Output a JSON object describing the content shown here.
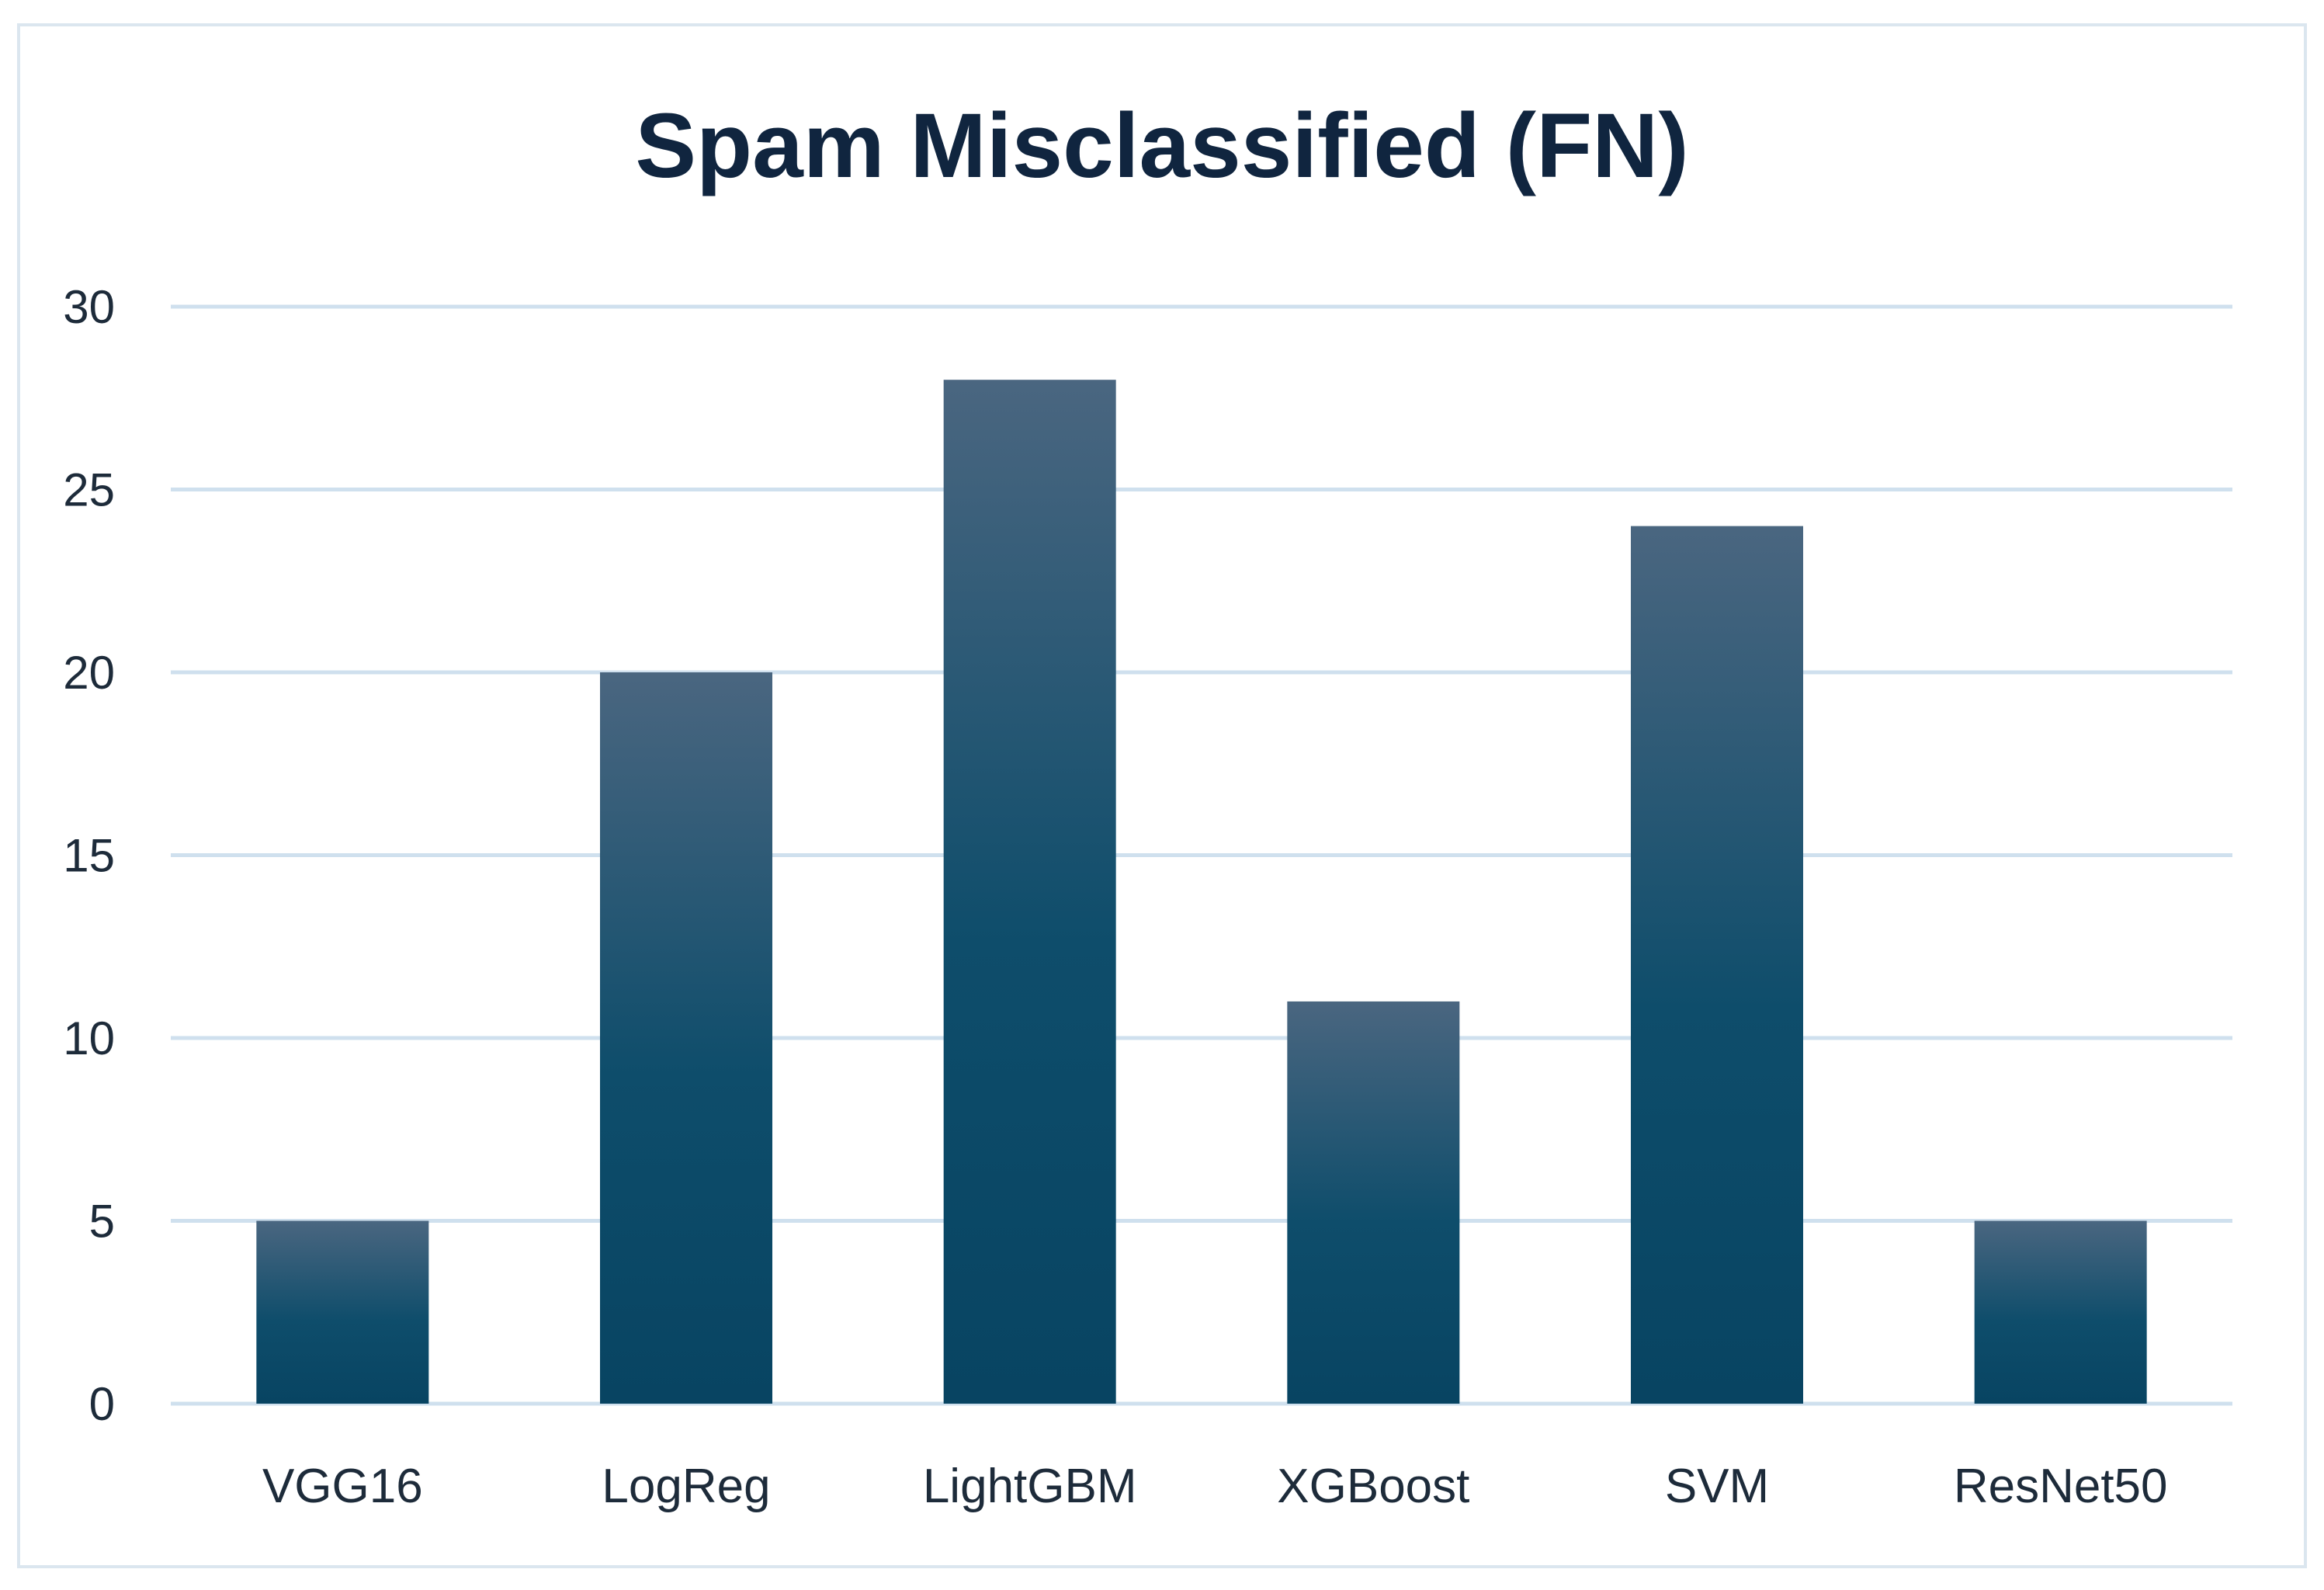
{
  "chart_data": {
    "type": "bar",
    "title": "Spam Misclassified (FN)",
    "xlabel": "",
    "ylabel": "",
    "categories": [
      "VGG16",
      "LogReg",
      "LightGBM",
      "XGBoost",
      "SVM",
      "ResNet50"
    ],
    "values": [
      5,
      20,
      28,
      11,
      24,
      5
    ],
    "ylim": [
      0,
      30
    ],
    "yticks": [
      "0",
      "5",
      "10",
      "15",
      "20",
      "25",
      "30"
    ],
    "grid": true,
    "legend": "none",
    "colors": {
      "bar_top": "#4a6680",
      "bar_mid": "#0e4d6b",
      "bar_bottom": "#084462",
      "grid": "#cfe0ee",
      "axis": "#cfe0ee",
      "title": "#10253f",
      "text": "#1d2b3a"
    }
  }
}
